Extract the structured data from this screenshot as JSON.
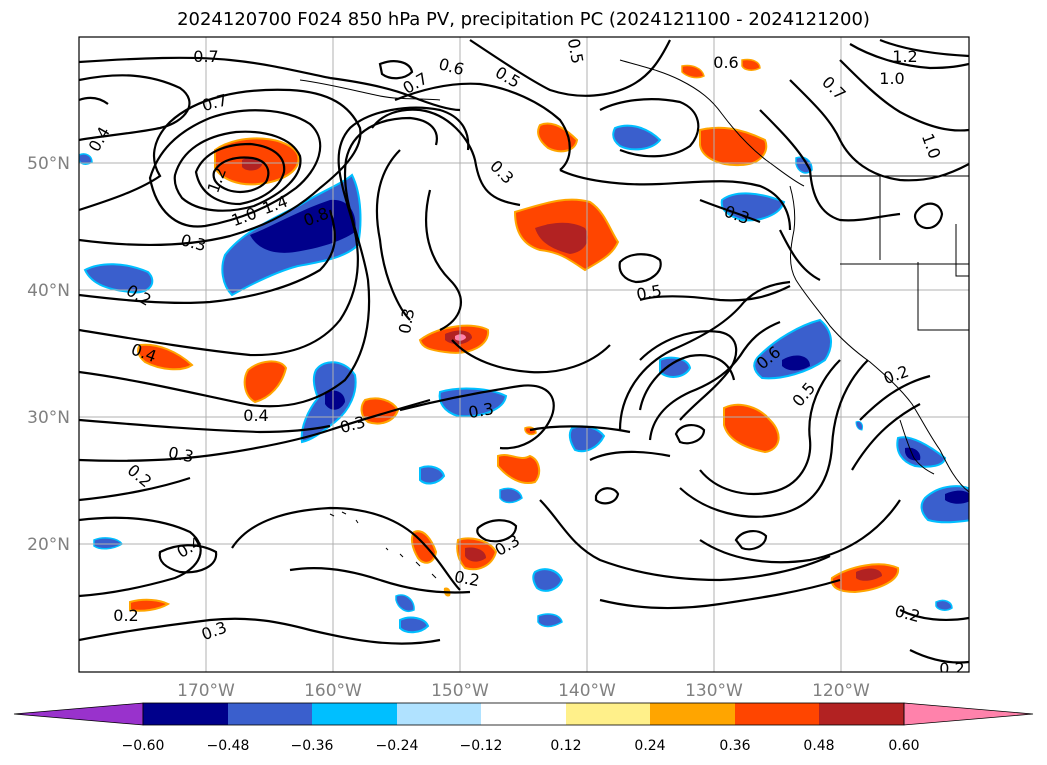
{
  "title": "2024120700 F024 850 hPa PV, precipitation PC (2024121100 - 2024121200)",
  "map": {
    "lon_ticks": [
      "170°W",
      "160°W",
      "150°W",
      "140°W",
      "130°W",
      "120°W"
    ],
    "lat_ticks": [
      "50°N",
      "40°N",
      "30°N",
      "20°N"
    ],
    "contour_labels": [
      "0.7",
      "0.6",
      "0.5",
      "0.5",
      "0.7",
      "0.6",
      "0.7",
      "1.2",
      "1.0",
      "0.4",
      "0.7",
      "1.2",
      "1.0",
      "1.4",
      "0.8",
      "0.3",
      "0.3",
      "0.3",
      "0.2",
      "0.3",
      "0.5",
      "0.4",
      "0.4",
      "0.3",
      "0.3",
      "0.6",
      "0.5",
      "0.2",
      "0.3",
      "0.2",
      "0.4",
      "0.3",
      "0.2",
      "0.2",
      "0.3",
      "0.2",
      "0.2",
      "1.0"
    ]
  },
  "colorbar": {
    "ticks": [
      "−0.60",
      "−0.48",
      "−0.36",
      "−0.24",
      "−0.12",
      "0.12",
      "0.24",
      "0.36",
      "0.48",
      "0.60"
    ],
    "colors": [
      "#9932cc",
      "#00008b",
      "#3a5fcd",
      "#00bfff",
      "#b0e2ff",
      "#ffffff",
      "#fff08a",
      "#ffa500",
      "#ff4500",
      "#b22222",
      "#ff82ab"
    ]
  },
  "colors": {
    "pos_light": "#fff08a",
    "pos_mid": "#ffa500",
    "pos_strong": "#ff4500",
    "pos_dark": "#b22222",
    "pos_max": "#ff82ab",
    "neg_light": "#b0e2ff",
    "neg_mid": "#00bfff",
    "neg_strong": "#3a5fcd",
    "neg_dark": "#00008b",
    "grid": "#b0b0b0"
  }
}
